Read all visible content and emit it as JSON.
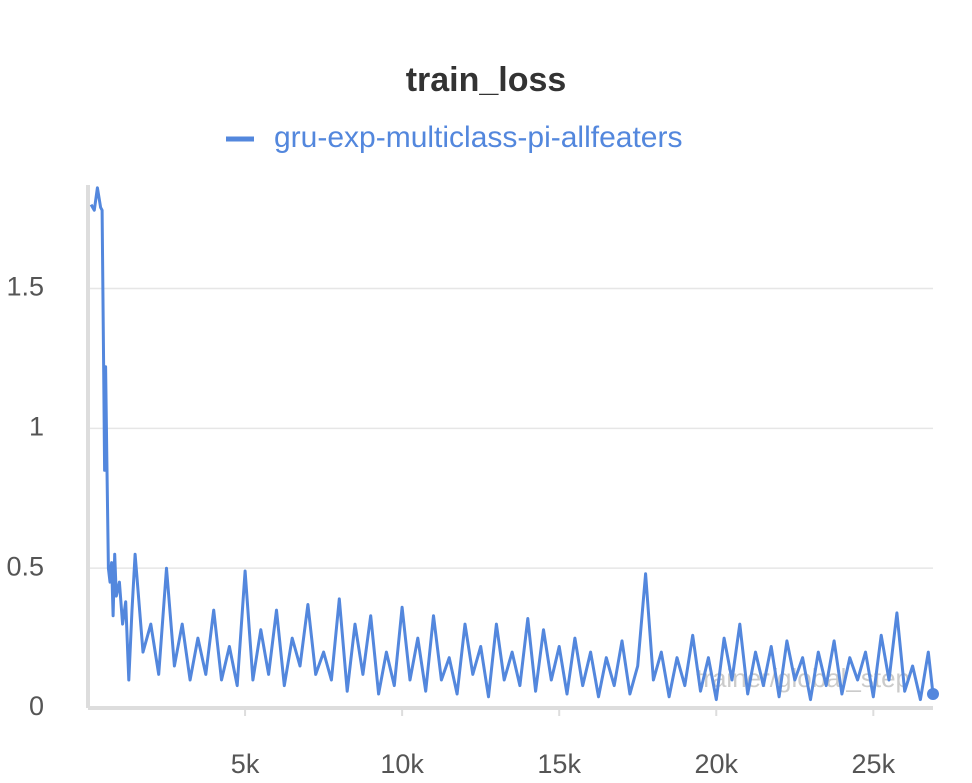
{
  "chart_data": {
    "type": "line",
    "title": "train_loss",
    "x_label": "trainer/global_step",
    "xlim": [
      0,
      26900
    ],
    "ylim": [
      0,
      1.87
    ],
    "xticks": [
      {
        "value": 5000,
        "label": "5k"
      },
      {
        "value": 10000,
        "label": "10k"
      },
      {
        "value": 15000,
        "label": "15k"
      },
      {
        "value": 20000,
        "label": "20k"
      },
      {
        "value": 25000,
        "label": "25k"
      }
    ],
    "yticks": [
      0,
      0.5,
      1,
      1.5
    ],
    "grid": true,
    "legend": "top",
    "x": [
      100,
      200,
      300,
      400,
      450,
      500,
      530,
      560,
      600,
      650,
      700,
      750,
      800,
      850,
      900,
      1000,
      1100,
      1200,
      1300,
      1400,
      1500,
      1750,
      2000,
      2250,
      2500,
      2750,
      3000,
      3250,
      3500,
      3750,
      4000,
      4250,
      4500,
      4750,
      5000,
      5250,
      5500,
      5750,
      6000,
      6250,
      6500,
      6750,
      7000,
      7250,
      7500,
      7750,
      8000,
      8250,
      8500,
      8750,
      9000,
      9250,
      9500,
      9750,
      10000,
      10250,
      10500,
      10750,
      11000,
      11250,
      11500,
      11750,
      12000,
      12250,
      12500,
      12750,
      13000,
      13250,
      13500,
      13750,
      14000,
      14250,
      14500,
      14750,
      15000,
      15250,
      15500,
      15750,
      16000,
      16250,
      16500,
      16750,
      17000,
      17250,
      17500,
      17750,
      18000,
      18250,
      18500,
      18750,
      19000,
      19250,
      19500,
      19750,
      20000,
      20250,
      20500,
      20750,
      21000,
      21250,
      21500,
      21750,
      22000,
      22250,
      22500,
      22750,
      23000,
      23250,
      23500,
      23750,
      24000,
      24250,
      24500,
      24750,
      25000,
      25250,
      25500,
      25750,
      26000,
      26250,
      26500,
      26750,
      26900
    ],
    "series": [
      {
        "name": "gru-exp-multiclass-pi-allfeaters",
        "color": "#5387dd",
        "values": [
          1.8,
          1.78,
          1.86,
          1.79,
          1.78,
          1.2,
          0.85,
          1.22,
          0.9,
          0.5,
          0.45,
          0.52,
          0.33,
          0.55,
          0.4,
          0.45,
          0.3,
          0.38,
          0.1,
          0.35,
          0.55,
          0.2,
          0.3,
          0.12,
          0.5,
          0.15,
          0.3,
          0.1,
          0.25,
          0.12,
          0.35,
          0.1,
          0.22,
          0.08,
          0.49,
          0.1,
          0.28,
          0.12,
          0.35,
          0.08,
          0.25,
          0.15,
          0.37,
          0.12,
          0.2,
          0.1,
          0.39,
          0.06,
          0.3,
          0.12,
          0.33,
          0.05,
          0.2,
          0.08,
          0.36,
          0.1,
          0.25,
          0.06,
          0.33,
          0.1,
          0.18,
          0.05,
          0.3,
          0.12,
          0.22,
          0.04,
          0.3,
          0.1,
          0.2,
          0.08,
          0.32,
          0.06,
          0.28,
          0.1,
          0.22,
          0.05,
          0.25,
          0.08,
          0.2,
          0.04,
          0.18,
          0.08,
          0.24,
          0.05,
          0.15,
          0.48,
          0.1,
          0.2,
          0.04,
          0.18,
          0.08,
          0.26,
          0.06,
          0.18,
          0.03,
          0.25,
          0.1,
          0.3,
          0.05,
          0.2,
          0.08,
          0.22,
          0.04,
          0.24,
          0.1,
          0.18,
          0.03,
          0.2,
          0.08,
          0.24,
          0.05,
          0.18,
          0.1,
          0.2,
          0.04,
          0.26,
          0.1,
          0.34,
          0.06,
          0.15,
          0.03,
          0.2,
          0.05
        ]
      }
    ]
  }
}
